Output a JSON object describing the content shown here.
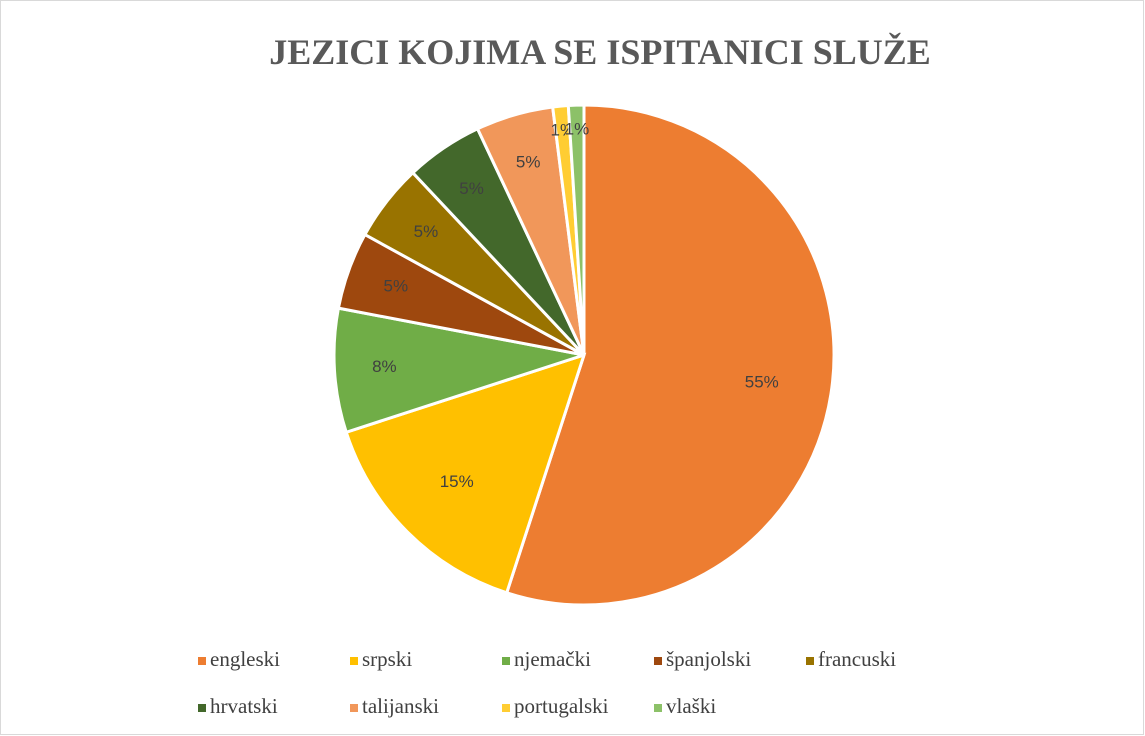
{
  "chart_data": {
    "type": "pie",
    "title": "JEZICI KOJIMA SE ISPITANICI SLUŽE",
    "categories": [
      "engleski",
      "srpski",
      "njemački",
      "španjolski",
      "francuski",
      "hrvatski",
      "talijanski",
      "portugalski",
      "vlaški"
    ],
    "values": [
      55,
      15,
      8,
      5,
      5,
      5,
      5,
      1,
      1
    ],
    "value_labels": [
      "55%",
      "15%",
      "8%",
      "5%",
      "5%",
      "5%",
      "5%",
      "1%",
      "1%"
    ],
    "colors": [
      "#ED7D31",
      "#FFC000",
      "#70AD47",
      "#9E480E",
      "#997300",
      "#43682B",
      "#F1975A",
      "#FFCD33",
      "#8CC168"
    ],
    "legend": "bottom"
  }
}
